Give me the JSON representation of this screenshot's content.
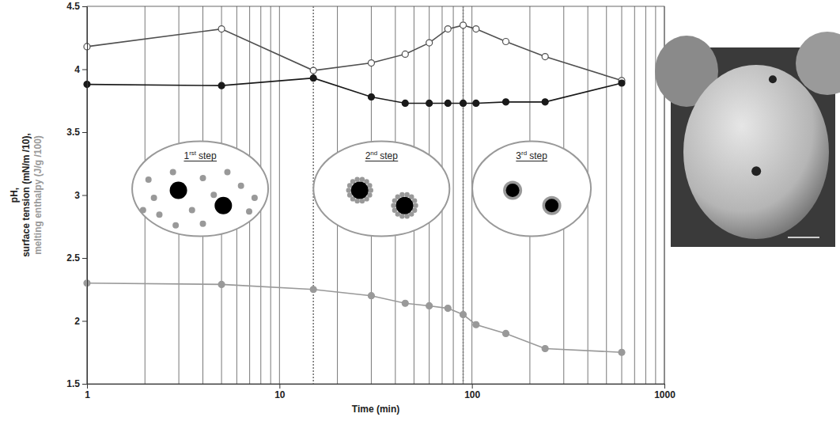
{
  "chart_data": {
    "type": "line",
    "xlabel": "Time (min)",
    "ylabel": [
      "pH,",
      "surface tension (mN/m /10),",
      "melting enthalpy (J/g /100)"
    ],
    "x": [
      1,
      5,
      15,
      30,
      45,
      60,
      75,
      90,
      105,
      150,
      240,
      600
    ],
    "series": [
      {
        "name": "surface tension",
        "color": "#505050",
        "marker": "open_circle",
        "values": [
          4.18,
          4.32,
          3.99,
          4.05,
          4.12,
          4.21,
          4.32,
          4.35,
          4.32,
          4.22,
          4.1,
          3.91
        ]
      },
      {
        "name": "melting enthalpy",
        "color": "#999999",
        "marker": "circle",
        "values": [
          2.3,
          2.29,
          2.25,
          2.2,
          2.14,
          2.12,
          2.1,
          2.05,
          1.97,
          1.9,
          1.78,
          1.75
        ]
      },
      {
        "name": "pH",
        "color": "#1a1a1a",
        "marker": "circle",
        "values": [
          3.88,
          3.87,
          3.93,
          3.78,
          3.73,
          3.73,
          3.73,
          3.73,
          3.73,
          3.74,
          3.74,
          3.89
        ]
      }
    ],
    "xlim": [
      1,
      1000
    ],
    "xticks": [
      1,
      10,
      100,
      1000
    ],
    "xminor_ticks": [
      2,
      3,
      4,
      5,
      6,
      7,
      8,
      9,
      20,
      30,
      40,
      50,
      60,
      70,
      80,
      90,
      200,
      300,
      400,
      500,
      600,
      700,
      800,
      900
    ],
    "ylim": [
      1.5,
      4.5
    ],
    "yticks": [
      1.5,
      2,
      2.5,
      3,
      3.5,
      4,
      4.5
    ],
    "log": "x",
    "grid": true,
    "legend": "bottom",
    "vlines": [
      15,
      90
    ],
    "annotations": [
      {
        "text": "1",
        "sup": "rst",
        "tail": "step"
      },
      {
        "text": "2",
        "sup": "nd",
        "tail": "step"
      },
      {
        "text": "3",
        "sup": "rd",
        "tail": "step"
      }
    ]
  }
}
